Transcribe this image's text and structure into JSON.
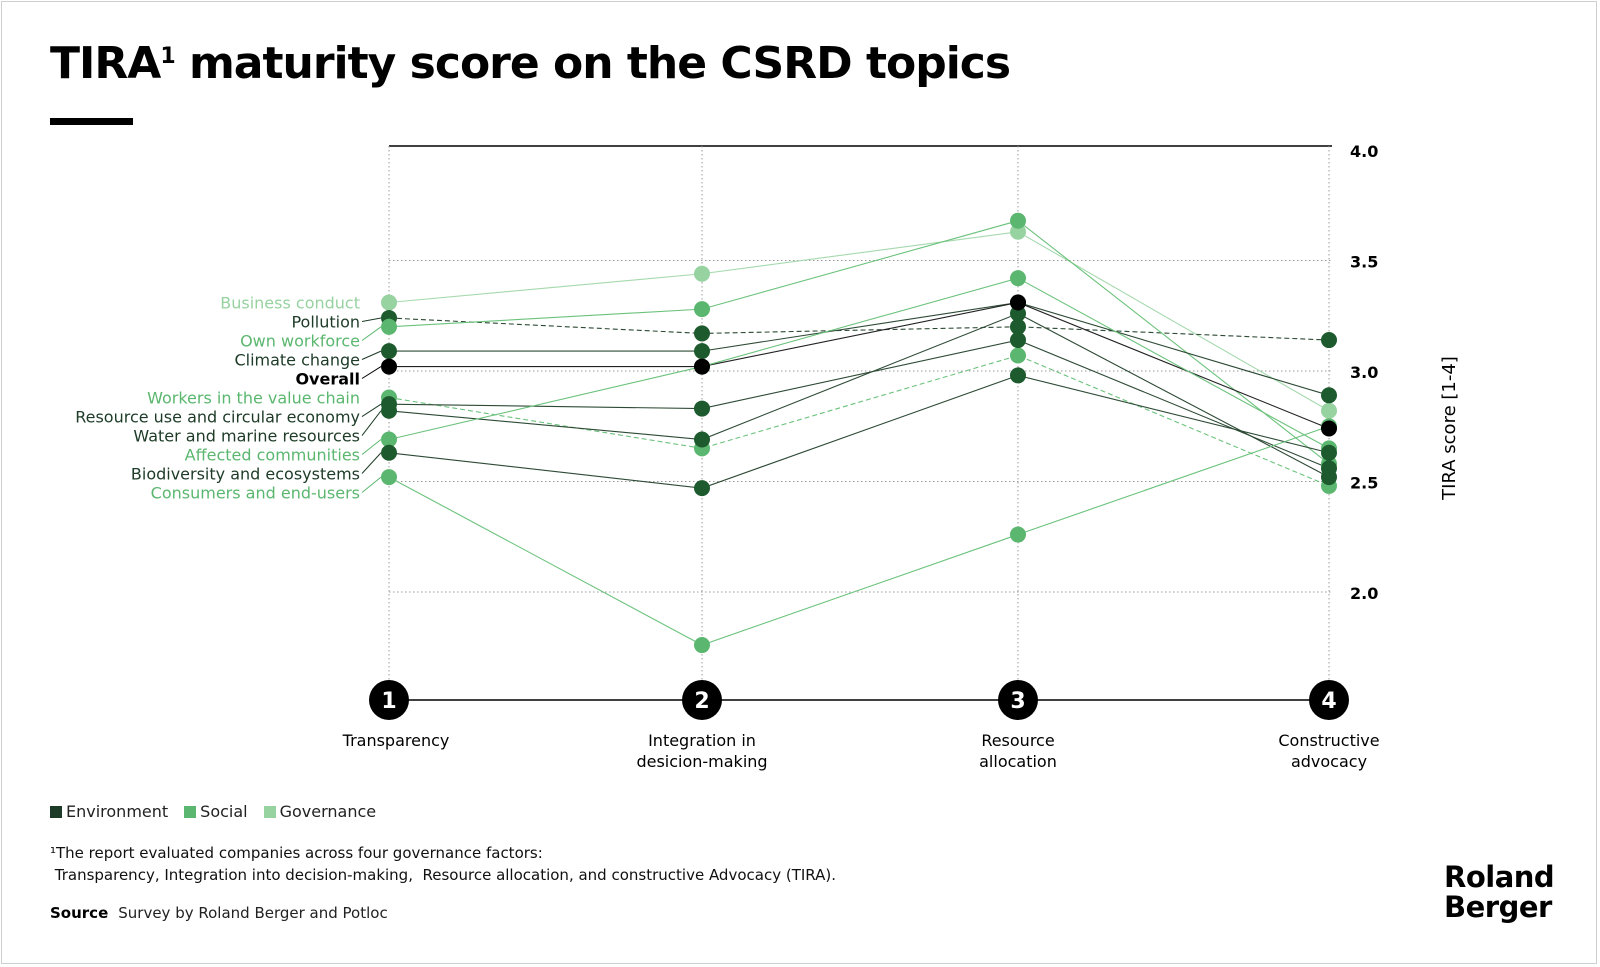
{
  "title": {
    "main": "TIRA",
    "sup": "1",
    "rest": " maturity score on the CSRD topics"
  },
  "chart_data": {
    "type": "line",
    "categories": [
      "Transparency",
      "Integration in desicion-making",
      "Resource allocation",
      "Constructive advocacy"
    ],
    "category_lines": [
      [
        "Transparency"
      ],
      [
        "Integration in",
        "desicion-making"
      ],
      [
        "Resource",
        "allocation"
      ],
      [
        "Constructive",
        "advocacy"
      ]
    ],
    "category_numbers": [
      "1",
      "2",
      "3",
      "4"
    ],
    "ylabel": "TIRA score [1-4]",
    "ylim": [
      1.5,
      4.0
    ],
    "yticks": [
      "4.0",
      "3.5",
      "3.0",
      "2.5",
      "2.0"
    ],
    "grid": true,
    "series": [
      {
        "name": "Business conduct",
        "group": "Governance",
        "values": [
          3.31,
          3.44,
          3.63,
          2.82
        ]
      },
      {
        "name": "Pollution",
        "group": "Environment",
        "dashed": true,
        "values": [
          3.24,
          3.17,
          3.2,
          3.14
        ]
      },
      {
        "name": "Own workforce",
        "group": "Social",
        "values": [
          3.2,
          3.28,
          3.68,
          2.58
        ]
      },
      {
        "name": "Climate change",
        "group": "Environment",
        "values": [
          3.09,
          3.09,
          3.31,
          2.89
        ]
      },
      {
        "name": "Overall",
        "group": "Overall",
        "values": [
          3.02,
          3.02,
          3.31,
          2.74
        ]
      },
      {
        "name": "Workers in the value chain",
        "group": "Social",
        "dashed": true,
        "values": [
          2.88,
          2.65,
          3.07,
          2.48
        ]
      },
      {
        "name": "Resource use and circular economy",
        "group": "Environment",
        "values": [
          2.85,
          2.83,
          3.14,
          2.56
        ]
      },
      {
        "name": "Water and marine resources",
        "group": "Environment",
        "values": [
          2.82,
          2.69,
          3.26,
          2.52
        ]
      },
      {
        "name": "Affected communities",
        "group": "Social",
        "values": [
          2.69,
          3.02,
          3.42,
          2.65
        ]
      },
      {
        "name": "Biodiversity and ecosystems",
        "group": "Environment",
        "values": [
          2.63,
          2.47,
          2.98,
          2.63
        ]
      },
      {
        "name": "Consumers and end-users",
        "group": "Social",
        "values": [
          2.52,
          1.76,
          2.26,
          2.75
        ]
      }
    ],
    "legend": {
      "placement": "bottom-left",
      "items": [
        "Environment",
        "Social",
        "Governance"
      ]
    },
    "colors": {
      "Environment": "#1d5a2e",
      "Social": "#5bb76f",
      "Governance": "#97d2a1",
      "Overall": "#000000"
    }
  },
  "footnote": {
    "line1": "¹The report evaluated companies across four governance factors:",
    "line2": " Transparency, Integration into decision-making,  Resource allocation, and constructive Advocacy (TIRA)."
  },
  "source": {
    "label": "Source",
    "text": "Survey by Roland Berger and Potloc"
  },
  "logo": {
    "line1": "Roland",
    "line2": "Berger"
  }
}
